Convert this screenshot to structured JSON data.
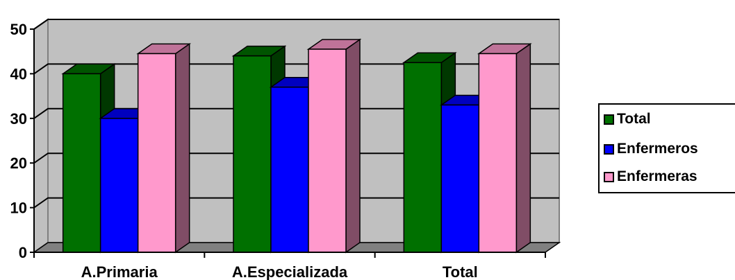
{
  "chart_data": {
    "type": "bar",
    "style": "3d-clustered-column",
    "categories": [
      "A.Primaria",
      "A.Especializada",
      "Total"
    ],
    "series": [
      {
        "name": "Total",
        "values": [
          40,
          44,
          42.5
        ],
        "color": "#007000"
      },
      {
        "name": "Enfermeros",
        "values": [
          30,
          37,
          33
        ],
        "color": "#0000ff"
      },
      {
        "name": "Enfermeras",
        "values": [
          44.5,
          45.5,
          44.5
        ],
        "color": "#ff99cc"
      }
    ],
    "yticks": [
      "0",
      "10",
      "20",
      "30",
      "40",
      "50"
    ],
    "ylim": [
      0,
      50
    ],
    "grid": true,
    "wall_color": "#c0c0c0",
    "legend_position": "right",
    "title": "",
    "xlabel": "",
    "ylabel": ""
  }
}
